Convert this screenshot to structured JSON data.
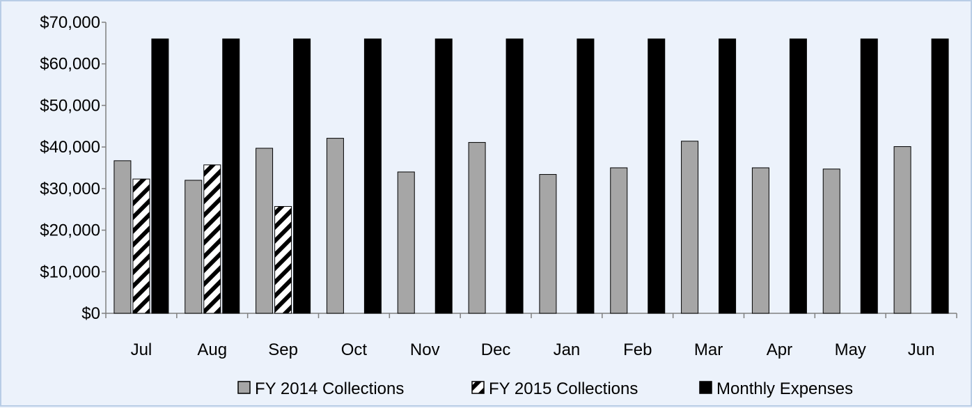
{
  "chart_data": {
    "type": "bar",
    "categories": [
      "Jul",
      "Aug",
      "Sep",
      "Oct",
      "Nov",
      "Dec",
      "Jan",
      "Feb",
      "Mar",
      "Apr",
      "May",
      "Jun"
    ],
    "series": [
      {
        "name": "FY 2014 Collections",
        "values": [
          36700,
          32000,
          39700,
          42100,
          34000,
          41100,
          33400,
          35000,
          41400,
          35000,
          34700,
          40100
        ],
        "fill": "#a6a6a6",
        "pattern": "solid"
      },
      {
        "name": "FY 2015 Collections",
        "values": [
          32300,
          35700,
          25700,
          null,
          null,
          null,
          null,
          null,
          null,
          null,
          null,
          null
        ],
        "fill": "#ffffff",
        "pattern": "diagonal-stripes"
      },
      {
        "name": "Monthly Expenses",
        "values": [
          66000,
          66000,
          66000,
          66000,
          66000,
          66000,
          66000,
          66000,
          66000,
          66000,
          66000,
          66000
        ],
        "fill": "#000000",
        "pattern": "solid"
      }
    ],
    "y_ticks": [
      "$0",
      "$10,000",
      "$20,000",
      "$30,000",
      "$40,000",
      "$50,000",
      "$60,000",
      "$70,000"
    ],
    "ylim": [
      0,
      70000
    ],
    "grid": false,
    "legend_position": "bottom",
    "title": "",
    "xlabel": "",
    "ylabel": ""
  },
  "colors": {
    "background": "#ecf2fb",
    "border": "#b9cde6",
    "axis": "#7f7f7f",
    "bar_outline": "#000000"
  }
}
